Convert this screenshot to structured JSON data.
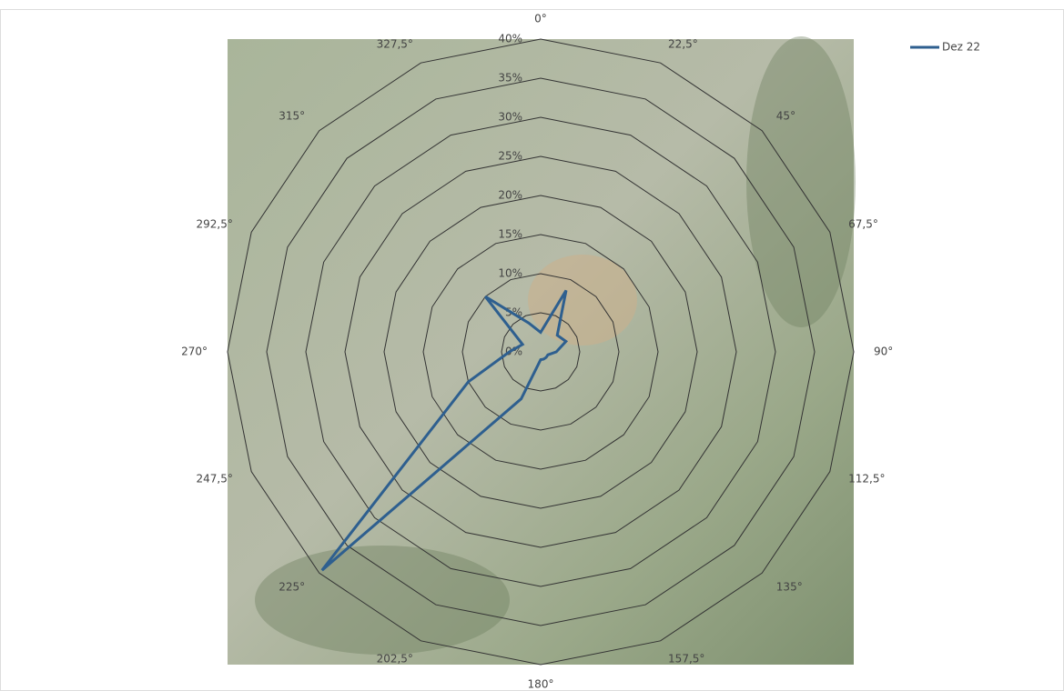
{
  "chart_data": {
    "type": "radar",
    "categories": [
      "0°",
      "22,5°",
      "45°",
      "67,5°",
      "90°",
      "112,5°",
      "135°",
      "157,5°",
      "180°",
      "202,5°",
      "225°",
      "247,5°",
      "270°",
      "292,5°",
      "315°",
      "327,5°"
    ],
    "series": [
      {
        "name": "Dez 22",
        "color": "#2e5f8f",
        "values": [
          2.5,
          8.5,
          3,
          3.5,
          2,
          1,
          1,
          1,
          1,
          6.5,
          39.5,
          10,
          4,
          2.5,
          10,
          4
        ]
      }
    ],
    "rlim": [
      0,
      40
    ],
    "rticks": [
      {
        "value": 0,
        "label": "0%"
      },
      {
        "value": 5,
        "label": "5%"
      },
      {
        "value": 10,
        "label": "10%"
      },
      {
        "value": 15,
        "label": "15%"
      },
      {
        "value": 20,
        "label": "20%"
      },
      {
        "value": 25,
        "label": "25%"
      },
      {
        "value": 30,
        "label": "30%"
      },
      {
        "value": 35,
        "label": "35%"
      },
      {
        "value": 40,
        "label": "40%"
      }
    ],
    "grid": true,
    "legend": "top-right"
  }
}
